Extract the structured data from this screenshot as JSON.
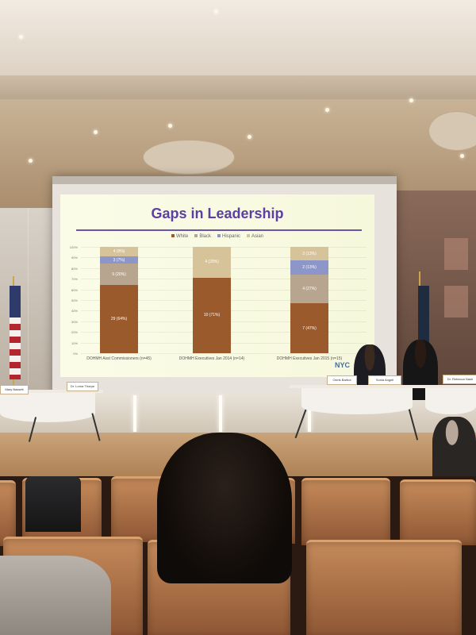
{
  "slide": {
    "title": "Gaps in Leadership",
    "legend": [
      {
        "label": "White",
        "color": "#9a5a2c"
      },
      {
        "label": "Black",
        "color": "#b8a590"
      },
      {
        "label": "Hispanic",
        "color": "#8d96c8"
      },
      {
        "label": "Asian",
        "color": "#d7c39a"
      }
    ],
    "logo_text": "NYC"
  },
  "chart_data": {
    "type": "bar",
    "stacked": true,
    "categories": [
      "DOHMH Asst Commissioners (n=45)",
      "DOHMH Executives Jan 2014 (n=14)",
      "DOHMH Executives Jan 2015 (n=15)"
    ],
    "series": [
      {
        "name": "White",
        "values": [
          0.64,
          0.71,
          0.47
        ],
        "labels": [
          "29 (64%)",
          "10 (71%)",
          "7 (47%)"
        ]
      },
      {
        "name": "Black",
        "values": [
          0.2,
          0.0,
          0.27
        ],
        "labels": [
          "9 (20%)",
          "",
          "4 (27%)"
        ]
      },
      {
        "name": "Hispanic",
        "values": [
          0.07,
          0.0,
          0.13
        ],
        "labels": [
          "3 (7%)",
          "",
          "2 (13%)"
        ]
      },
      {
        "name": "Asian",
        "values": [
          0.09,
          0.29,
          0.13
        ],
        "labels": [
          "4 (9%)",
          "4 (29%)",
          "2 (13%)"
        ]
      }
    ],
    "ylim": [
      0,
      100
    ],
    "yticks": [
      "0%",
      "10%",
      "20%",
      "30%",
      "40%",
      "50%",
      "60%",
      "70%",
      "80%",
      "90%",
      "100%"
    ],
    "legend_position": "top-center",
    "colors": {
      "White": "#9a5a2c",
      "Black": "#b8a590",
      "Hispanic": "#8d96c8",
      "Asian": "#d7c39a"
    }
  },
  "nameplates": [
    "Mary Bassett",
    "Dr. Lorna Thorpe",
    "Oxiris Barbot",
    "Sonia Angell",
    "Dr. Rebecca Nash"
  ]
}
